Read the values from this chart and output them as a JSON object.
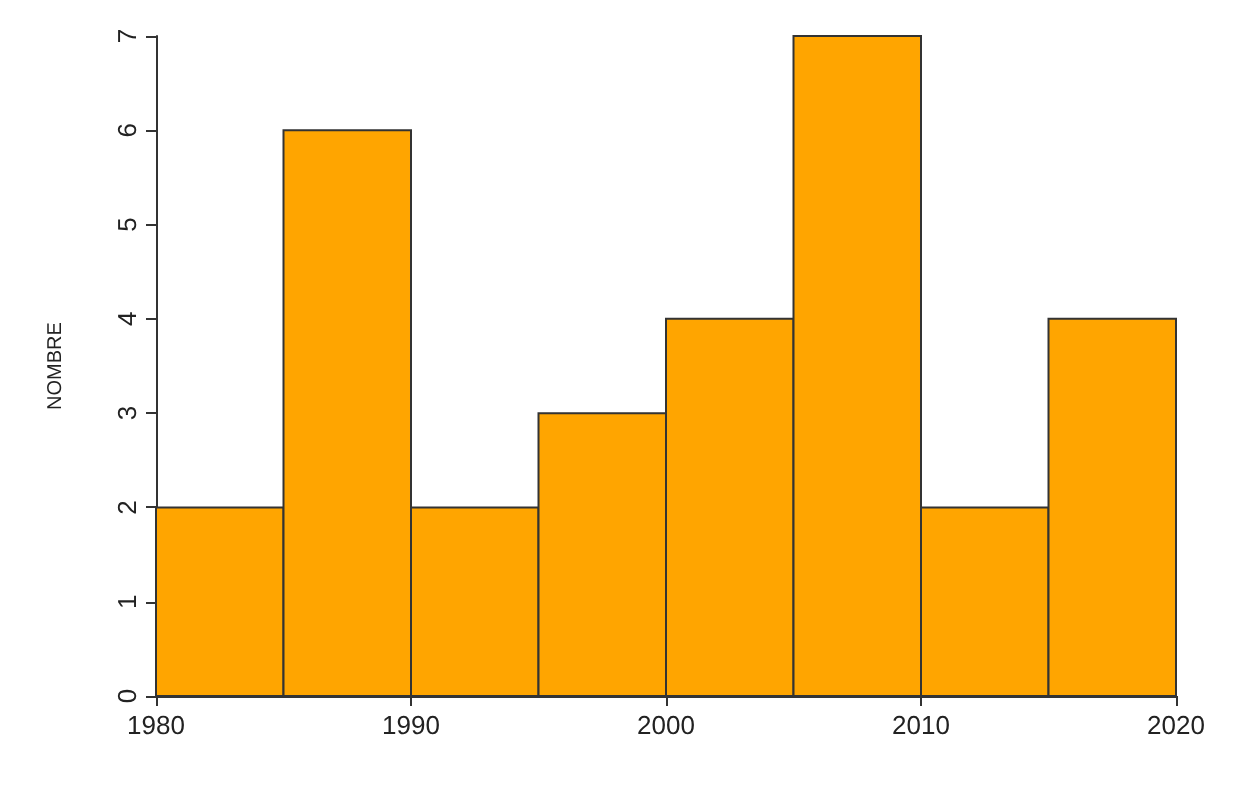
{
  "chart_data": {
    "type": "histogram",
    "ylabel": "NOMBRE",
    "bins": [
      1980,
      1985,
      1990,
      1995,
      2000,
      2005,
      2010,
      2015,
      2020
    ],
    "values": [
      2,
      6,
      2,
      3,
      4,
      7,
      2,
      4
    ],
    "color": "#ffa500",
    "xlim": [
      1980,
      2020
    ],
    "xticks": [
      1980,
      1990,
      2000,
      2010,
      2020
    ],
    "ylim": [
      0,
      7
    ],
    "yticks": [
      0,
      1,
      2,
      3,
      4,
      5,
      6,
      7
    ],
    "grid": false
  }
}
